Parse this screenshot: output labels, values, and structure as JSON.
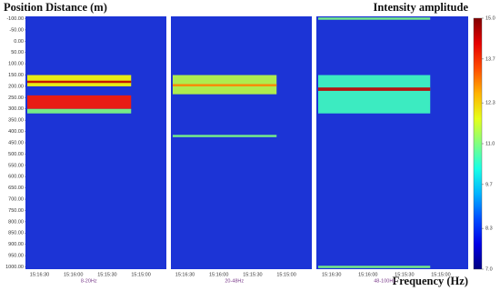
{
  "chart_data": {
    "type": "heatmap",
    "title": "Position Distance (m)",
    "colorbar_title": "Intensity amplitude",
    "xlabel": "Frequency (Hz)",
    "ylim": [
      -110,
      1010
    ],
    "yticks": [
      {
        "value": -100,
        "label": "-100.00"
      },
      {
        "value": -50,
        "label": "-50.00"
      },
      {
        "value": 0,
        "label": "0.00"
      },
      {
        "value": 50,
        "label": "50.00"
      },
      {
        "value": 100,
        "label": "100.00"
      },
      {
        "value": 150,
        "label": "150.00"
      },
      {
        "value": 200,
        "label": "200.00"
      },
      {
        "value": 250,
        "label": "250.00"
      },
      {
        "value": 300,
        "label": "300.00"
      },
      {
        "value": 350,
        "label": "350.00"
      },
      {
        "value": 400,
        "label": "400.00"
      },
      {
        "value": 450,
        "label": "450.00"
      },
      {
        "value": 500,
        "label": "500.00"
      },
      {
        "value": 550,
        "label": "550.00"
      },
      {
        "value": 600,
        "label": "600.00"
      },
      {
        "value": 650,
        "label": "650.00"
      },
      {
        "value": 700,
        "label": "700.00"
      },
      {
        "value": 750,
        "label": "750.00"
      },
      {
        "value": 800,
        "label": "800.00"
      },
      {
        "value": 850,
        "label": "850.00"
      },
      {
        "value": 900,
        "label": "900.00"
      },
      {
        "value": 950,
        "label": "950.00"
      },
      {
        "value": 1000,
        "label": "1000.00"
      }
    ],
    "clim": [
      7,
      15
    ],
    "cticks": [
      {
        "value": 15,
        "label": "15.0"
      },
      {
        "value": 13.7,
        "label": "13.7"
      },
      {
        "value": 12.3,
        "label": "12.3"
      },
      {
        "value": 11,
        "label": "11.0"
      },
      {
        "value": 9.7,
        "label": "9.7"
      },
      {
        "value": 8.3,
        "label": "8.3"
      },
      {
        "value": 7,
        "label": "7.0"
      }
    ],
    "panels": [
      {
        "name": "8-20Hz",
        "xticks": [
          "15:16:30",
          "15:16:00",
          "15:15:30",
          "15:15:00"
        ],
        "bands": [
          {
            "from": 150,
            "to": 200,
            "level": 12
          },
          {
            "from": 175,
            "to": 185,
            "level": 14.5
          },
          {
            "from": 240,
            "to": 300,
            "level": 13.8
          },
          {
            "from": 300,
            "to": 320,
            "level": 11
          }
        ]
      },
      {
        "name": "20-48Hz",
        "xticks": [
          "15:16:30",
          "15:16:00",
          "15:15:30",
          "15:15:00"
        ],
        "bands": [
          {
            "from": 150,
            "to": 235,
            "level": 11.5
          },
          {
            "from": 190,
            "to": 200,
            "level": 13
          },
          {
            "from": 415,
            "to": 425,
            "level": 11
          }
        ]
      },
      {
        "name": "48-100Hz",
        "xticks": [
          "15:16:30",
          "15:16:00",
          "15:15:30",
          "15:15:00"
        ],
        "bands": [
          {
            "from": -105,
            "to": -95,
            "level": 11
          },
          {
            "from": 150,
            "to": 320,
            "level": 10.5
          },
          {
            "from": 205,
            "to": 220,
            "level": 14.5
          },
          {
            "from": 995,
            "to": 1005,
            "level": 11
          }
        ]
      }
    ]
  }
}
